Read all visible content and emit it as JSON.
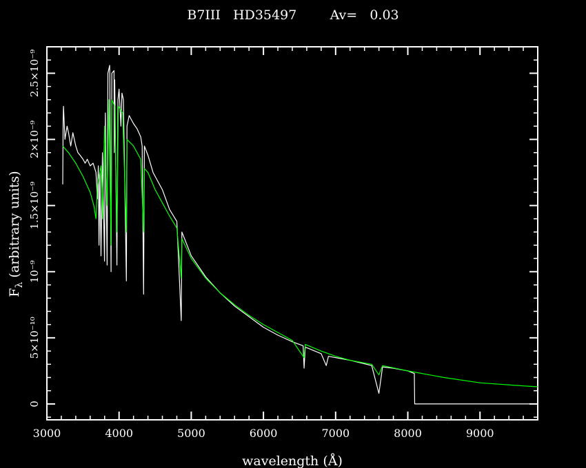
{
  "chart_data": {
    "type": "line",
    "title": "B7III   HD35497        Av=   0.03",
    "xlabel": "wavelength (Å)",
    "ylabel": "F",
    "ylabel_sub": "λ",
    "ylabel_tail": " (arbitrary units)",
    "xlim": [
      3000,
      9800
    ],
    "ylim": [
      -1.2e-10,
      2.7e-09
    ],
    "x_ticks": [
      {
        "value": 3000,
        "label": "3000"
      },
      {
        "value": 4000,
        "label": "4000"
      },
      {
        "value": 5000,
        "label": "5000"
      },
      {
        "value": 6000,
        "label": "6000"
      },
      {
        "value": 7000,
        "label": "7000"
      },
      {
        "value": 8000,
        "label": "8000"
      },
      {
        "value": 9000,
        "label": "9000"
      }
    ],
    "y_ticks": [
      {
        "value": 0,
        "label": "0"
      },
      {
        "value": 5e-10,
        "label": "5×10⁻¹⁰"
      },
      {
        "value": 1e-09,
        "label": "10⁻⁹"
      },
      {
        "value": 1.5e-09,
        "label": "1.5×10⁻⁹"
      },
      {
        "value": 2e-09,
        "label": "2×10⁻⁹"
      },
      {
        "value": 2.5e-09,
        "label": "2.5×10⁻⁹"
      }
    ],
    "series": [
      {
        "color": "#ffffff",
        "points": [
          [
            3220,
            1.66e-09
          ],
          [
            3225,
            2.15e-09
          ],
          [
            3230,
            2.25e-09
          ],
          [
            3250,
            2e-09
          ],
          [
            3280,
            2.1e-09
          ],
          [
            3300,
            2.05e-09
          ],
          [
            3330,
            1.95e-09
          ],
          [
            3360,
            2.05e-09
          ],
          [
            3400,
            1.95e-09
          ],
          [
            3430,
            1.9e-09
          ],
          [
            3460,
            1.88e-09
          ],
          [
            3500,
            1.85e-09
          ],
          [
            3530,
            1.82e-09
          ],
          [
            3560,
            1.85e-09
          ],
          [
            3600,
            1.8e-09
          ],
          [
            3640,
            1.82e-09
          ],
          [
            3680,
            1.75e-09
          ],
          [
            3700,
            1.55e-09
          ],
          [
            3712,
            1.8e-09
          ],
          [
            3722,
            1.2e-09
          ],
          [
            3734,
            1.75e-09
          ],
          [
            3750,
            1.12e-09
          ],
          [
            3770,
            1.9e-09
          ],
          [
            3798,
            1.08e-09
          ],
          [
            3810,
            2.2e-09
          ],
          [
            3835,
            1.05e-09
          ],
          [
            3845,
            2.5e-09
          ],
          [
            3870,
            2.56e-09
          ],
          [
            3889,
            1e-09
          ],
          [
            3900,
            2.5e-09
          ],
          [
            3930,
            2.52e-09
          ],
          [
            3934,
            1.9e-09
          ],
          [
            3940,
            2.45e-09
          ],
          [
            3970,
            1.05e-09
          ],
          [
            3985,
            2.3e-09
          ],
          [
            4000,
            2.38e-09
          ],
          [
            4026,
            2.1e-09
          ],
          [
            4040,
            2.35e-09
          ],
          [
            4060,
            2.3e-09
          ],
          [
            4101,
            9.3e-10
          ],
          [
            4110,
            2.1e-09
          ],
          [
            4140,
            2.18e-09
          ],
          [
            4200,
            2.12e-09
          ],
          [
            4250,
            2.08e-09
          ],
          [
            4300,
            2.02e-09
          ],
          [
            4320,
            1.95e-09
          ],
          [
            4340,
            8.3e-10
          ],
          [
            4350,
            1.95e-09
          ],
          [
            4400,
            1.88e-09
          ],
          [
            4471,
            1.75e-09
          ],
          [
            4500,
            1.72e-09
          ],
          [
            4600,
            1.62e-09
          ],
          [
            4700,
            1.47e-09
          ],
          [
            4800,
            1.38e-09
          ],
          [
            4861,
            6.3e-10
          ],
          [
            4870,
            1.3e-09
          ],
          [
            4900,
            1.26e-09
          ],
          [
            5000,
            1.12e-09
          ],
          [
            5200,
            9.6e-10
          ],
          [
            5400,
            8.4e-10
          ],
          [
            5600,
            7.4e-10
          ],
          [
            5800,
            6.6e-10
          ],
          [
            6000,
            5.8e-10
          ],
          [
            6200,
            5.2e-10
          ],
          [
            6400,
            4.7e-10
          ],
          [
            6550,
            4.4e-10
          ],
          [
            6563,
            2.7e-10
          ],
          [
            6580,
            4.3e-10
          ],
          [
            6800,
            3.8e-10
          ],
          [
            6870,
            2.9e-10
          ],
          [
            6900,
            3.6e-10
          ],
          [
            7200,
            3.3e-10
          ],
          [
            7500,
            2.9e-10
          ],
          [
            7600,
            8e-11
          ],
          [
            7650,
            2.8e-10
          ],
          [
            7800,
            2.7e-10
          ],
          [
            8000,
            2.5e-10
          ],
          [
            8090,
            2.3e-10
          ],
          [
            8095,
            0.0
          ],
          [
            9800,
            0.0
          ]
        ]
      },
      {
        "color": "#00ff00",
        "points": [
          [
            3220,
            1.95e-09
          ],
          [
            3300,
            1.9e-09
          ],
          [
            3400,
            1.82e-09
          ],
          [
            3500,
            1.72e-09
          ],
          [
            3600,
            1.6e-09
          ],
          [
            3650,
            1.5e-09
          ],
          [
            3680,
            1.4e-09
          ],
          [
            3700,
            1.65e-09
          ],
          [
            3750,
            1.8e-09
          ],
          [
            3770,
            1.4e-09
          ],
          [
            3800,
            2.1e-09
          ],
          [
            3835,
            1.5e-09
          ],
          [
            3860,
            2.3e-09
          ],
          [
            3889,
            1.2e-09
          ],
          [
            3900,
            2.3e-09
          ],
          [
            3940,
            2.25e-09
          ],
          [
            3970,
            1.3e-09
          ],
          [
            3990,
            2.25e-09
          ],
          [
            4050,
            2.2e-09
          ],
          [
            4101,
            1.3e-09
          ],
          [
            4110,
            2e-09
          ],
          [
            4200,
            1.95e-09
          ],
          [
            4300,
            1.85e-09
          ],
          [
            4340,
            1.3e-09
          ],
          [
            4350,
            1.78e-09
          ],
          [
            4400,
            1.75e-09
          ],
          [
            4500,
            1.62e-09
          ],
          [
            4600,
            1.52e-09
          ],
          [
            4700,
            1.42e-09
          ],
          [
            4800,
            1.33e-09
          ],
          [
            4861,
            9.5e-10
          ],
          [
            4870,
            1.25e-09
          ],
          [
            5000,
            1.1e-09
          ],
          [
            5200,
            9.5e-10
          ],
          [
            5400,
            8.4e-10
          ],
          [
            5600,
            7.5e-10
          ],
          [
            5800,
            6.7e-10
          ],
          [
            6000,
            6e-10
          ],
          [
            6200,
            5.4e-10
          ],
          [
            6400,
            4.8e-10
          ],
          [
            6563,
            3.5e-10
          ],
          [
            6580,
            4.5e-10
          ],
          [
            6800,
            4e-10
          ],
          [
            7000,
            3.6e-10
          ],
          [
            7200,
            3.3e-10
          ],
          [
            7500,
            3e-10
          ],
          [
            7600,
            2.2e-10
          ],
          [
            7650,
            2.9e-10
          ],
          [
            8000,
            2.5e-10
          ],
          [
            8500,
            2e-10
          ],
          [
            9000,
            1.6e-10
          ],
          [
            9500,
            1.4e-10
          ],
          [
            9800,
            1.3e-10
          ]
        ]
      }
    ]
  }
}
